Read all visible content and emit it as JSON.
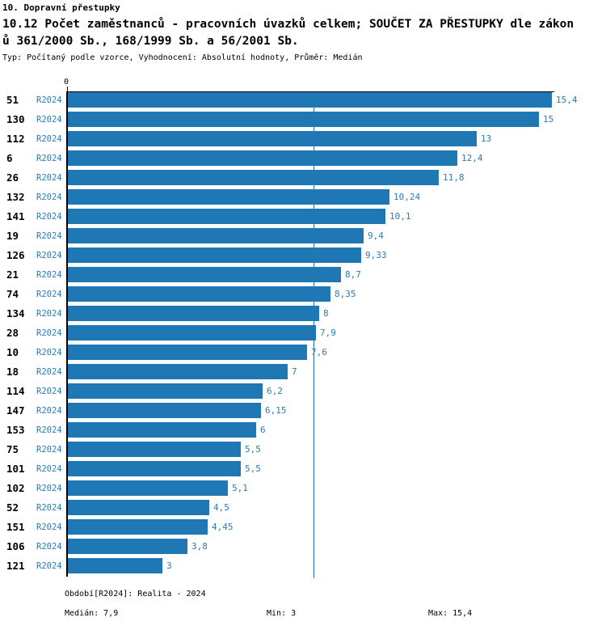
{
  "header": {
    "line1": "10. Dopravní přestupky",
    "line2": "10.12 Počet zaměstnanců - pracovních úvazků celkem; SOUČET ZA PŘESTUPKY dle zákon",
    "line3": "ů 361/2000 Sb., 168/1999 Sb. a 56/2001 Sb.",
    "meta": "Typ: Počítaný podle vzorce, Vyhodnocení: Absolutní hodnoty, Průměr: Medián"
  },
  "chart_data": {
    "type": "bar",
    "orientation": "horizontal",
    "title": "10.12 Počet zaměstnanců - pracovních úvazků celkem; SOUČET ZA PŘESTUPKY dle zákonů 361/2000 Sb., 168/1999 Sb. a 56/2001 Sb.",
    "series_label": "R2024",
    "axis_zero_label": "0",
    "xlim": [
      0,
      15.4
    ],
    "median_value": 7.9,
    "grid": false,
    "legend_position": "none",
    "categories": [
      "51",
      "130",
      "112",
      "6",
      "26",
      "132",
      "141",
      "19",
      "126",
      "21",
      "74",
      "134",
      "28",
      "10",
      "18",
      "114",
      "147",
      "153",
      "75",
      "101",
      "102",
      "52",
      "151",
      "106",
      "121"
    ],
    "values": [
      15.4,
      15,
      13,
      12.4,
      11.8,
      10.24,
      10.1,
      9.4,
      9.33,
      8.7,
      8.35,
      8,
      7.9,
      7.6,
      7,
      6.2,
      6.15,
      6,
      5.5,
      5.5,
      5.1,
      4.5,
      4.45,
      3.8,
      3
    ],
    "value_labels": [
      "15,4",
      "15",
      "13",
      "12,4",
      "11,8",
      "10,24",
      "10,1",
      "9,4",
      "9,33",
      "8,7",
      "8,35",
      "8",
      "7,9",
      "7,6",
      "7",
      "6,2",
      "6,15",
      "6",
      "5,5",
      "5,5",
      "5,1",
      "4,5",
      "4,45",
      "3,8",
      "3"
    ],
    "colors": {
      "bar": "#1f77b4",
      "median_line": "#1f77b4",
      "value_text": "#2b7cb8",
      "series_text": "#2b7cb8",
      "category_text": "#000000",
      "axis": "#000000"
    }
  },
  "footer": {
    "period": "Období[R2024]: Realita - 2024",
    "median": "Medián: 7,9",
    "min": "Min: 3",
    "max": "Max: 15,4"
  }
}
